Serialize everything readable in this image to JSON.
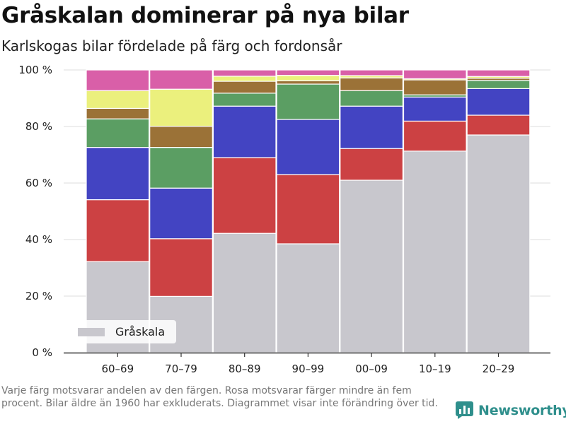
{
  "header": {
    "title": "Gråskalan dominerar på nya bilar",
    "subtitle": "Karlskogas bilar fördelade på färg och fordonsår"
  },
  "footer": {
    "note": "Varje färg motsvarar andelen av den färgen. Rosa motsvarar färger mindre än fem procent. Bilar äldre än 1960 har exkluderats. Diagrammet visar inte förändring över tid.",
    "brand": "Newsworthy",
    "brand_icon": "bar-chart-logo-icon",
    "brand_color": "#2f8f8c"
  },
  "chart_data": {
    "type": "bar",
    "stacked": true,
    "categories": [
      "60–69",
      "70–79",
      "80–89",
      "90–99",
      "00–09",
      "10–19",
      "20–29"
    ],
    "ylim": [
      0,
      100
    ],
    "yticks": [
      0,
      20,
      40,
      60,
      80,
      100
    ],
    "ytick_labels": [
      "0 %",
      "20 %",
      "40 %",
      "60 %",
      "80 %",
      "100 %"
    ],
    "grid": true,
    "legend_position": "bottom-left",
    "series": [
      {
        "name": "Gråskala",
        "color": "#c8c7cd",
        "values": [
          32.2,
          19.9,
          42.2,
          38.5,
          61.0,
          71.3,
          77.0
        ]
      },
      {
        "color": "#cc4143",
        "values": [
          21.9,
          20.4,
          26.8,
          24.5,
          11.2,
          10.6,
          7.0
        ]
      },
      {
        "color": "#4344c2",
        "values": [
          18.5,
          17.9,
          18.2,
          19.5,
          15.0,
          8.5,
          9.4
        ]
      },
      {
        "color": "#5b9e63",
        "values": [
          10.1,
          14.4,
          4.6,
          12.5,
          5.5,
          0.8,
          2.9
        ]
      },
      {
        "color": "#9b7237",
        "values": [
          3.7,
          7.5,
          4.2,
          1.2,
          4.5,
          5.3,
          0.8
        ]
      },
      {
        "color": "#ebf07d",
        "values": [
          6.3,
          13.1,
          1.8,
          1.9,
          0.8,
          0.4,
          0.6
        ]
      },
      {
        "color": "#d95fa8",
        "values": [
          7.3,
          6.8,
          2.2,
          1.9,
          2.0,
          3.1,
          2.3
        ]
      }
    ]
  }
}
